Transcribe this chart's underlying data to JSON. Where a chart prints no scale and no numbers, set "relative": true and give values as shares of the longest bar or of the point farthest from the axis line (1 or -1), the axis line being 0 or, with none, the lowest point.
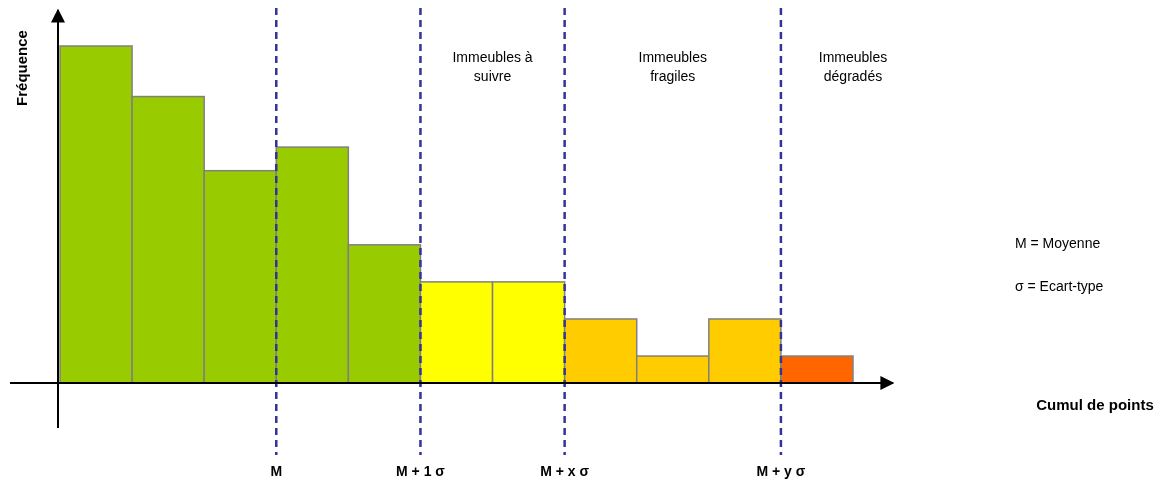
{
  "chart_data": {
    "type": "bar",
    "relative": true,
    "ylabel": "Fréquence",
    "categories": [
      null,
      null,
      null,
      null,
      null,
      null,
      null,
      null,
      null,
      null,
      null
    ],
    "values": [
      1,
      0.85,
      0.63,
      0.7,
      0.41,
      0.3,
      0.3,
      0.19,
      0.08,
      0.19,
      0.08
    ],
    "colors": [
      "#99cc00",
      "#99cc00",
      "#99cc00",
      "#99cc00",
      "#99cc00",
      "#ffff00",
      "#ffff00",
      "#ffcc00",
      "#ffcc00",
      "#ffcc00",
      "#ff6600"
    ],
    "annotations": [
      "Immeubles à suivre",
      "Immeubles fragiles",
      "Immeubles dégradés",
      "M",
      "M + 1 σ",
      "M + x σ",
      "M + y σ",
      "M = Moyenne",
      "σ = Ecart-type",
      "Cumul de points"
    ]
  }
}
